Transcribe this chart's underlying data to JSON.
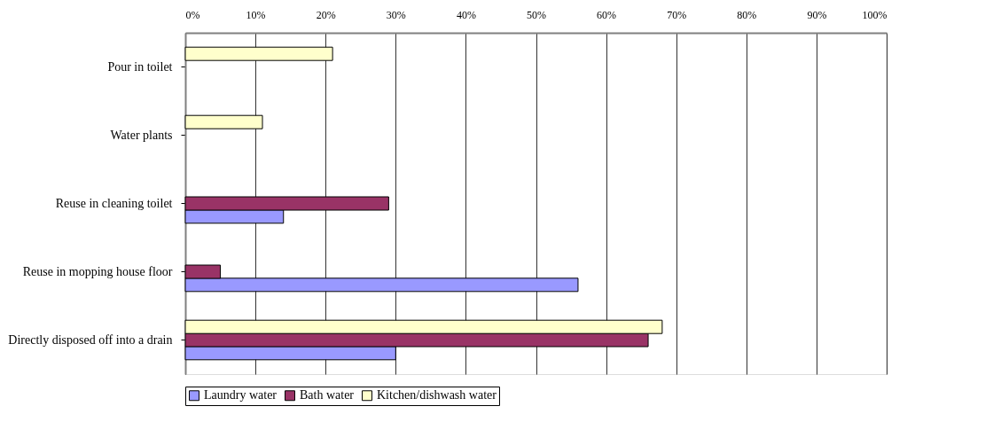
{
  "chart_data": {
    "type": "bar",
    "orientation": "horizontal",
    "categories": [
      "Pour in toilet",
      "Water plants",
      "Reuse in cleaning toilet",
      "Reuse in mopping house floor",
      "Directly disposed off into a drain"
    ],
    "series": [
      {
        "name": "Laundry water",
        "color": "#9999ff",
        "values": [
          null,
          null,
          14,
          56,
          30
        ]
      },
      {
        "name": "Bath water",
        "color": "#993366",
        "values": [
          null,
          null,
          29,
          5,
          66
        ]
      },
      {
        "name": "Kitchen/dishwash water",
        "color": "#ffffcc",
        "values": [
          21,
          11,
          null,
          null,
          68
        ]
      }
    ],
    "xlim": [
      0,
      100
    ],
    "xticks": [
      {
        "value": 0,
        "label": "0%"
      },
      {
        "value": 10,
        "label": "10%"
      },
      {
        "value": 20,
        "label": "20%"
      },
      {
        "value": 30,
        "label": "30%"
      },
      {
        "value": 40,
        "label": "40%"
      },
      {
        "value": 50,
        "label": "50%"
      },
      {
        "value": 60,
        "label": "60%"
      },
      {
        "value": 70,
        "label": "70%"
      },
      {
        "value": 80,
        "label": "80%"
      },
      {
        "value": 90,
        "label": "90%"
      },
      {
        "value": 100,
        "label": "100%"
      }
    ],
    "grid": "x",
    "legend": "bottom"
  }
}
